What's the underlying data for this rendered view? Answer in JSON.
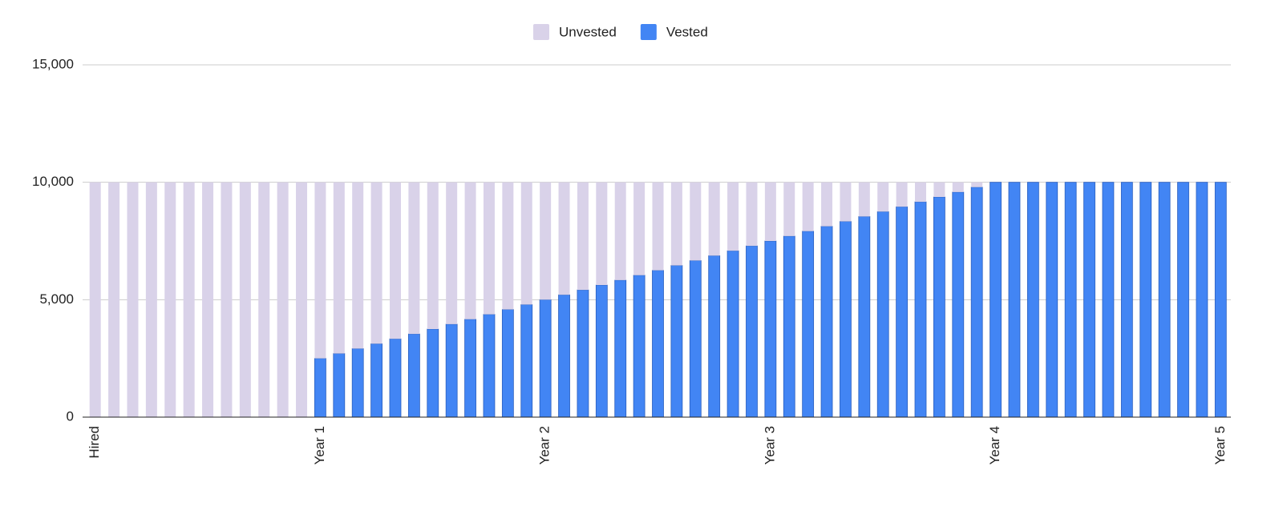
{
  "chart_data": {
    "type": "stacked_bar",
    "categories": [
      "Hired",
      null,
      null,
      null,
      null,
      null,
      null,
      null,
      null,
      null,
      null,
      null,
      "Year 1",
      null,
      null,
      null,
      null,
      null,
      null,
      null,
      null,
      null,
      null,
      null,
      "Year 2",
      null,
      null,
      null,
      null,
      null,
      null,
      null,
      null,
      null,
      null,
      null,
      "Year 3",
      null,
      null,
      null,
      null,
      null,
      null,
      null,
      null,
      null,
      null,
      null,
      "Year 4",
      null,
      null,
      null,
      null,
      null,
      null,
      null,
      null,
      null,
      null,
      null,
      "Year 5"
    ],
    "series": [
      {
        "name": "Unvested",
        "color": "#d9d2e9",
        "values": [
          10000,
          10000,
          10000,
          10000,
          10000,
          10000,
          10000,
          10000,
          10000,
          10000,
          10000,
          10000,
          7500,
          7292,
          7083,
          6875,
          6667,
          6458,
          6250,
          6042,
          5833,
          5625,
          5417,
          5208,
          5000,
          4792,
          4583,
          4375,
          4167,
          3958,
          3750,
          3542,
          3333,
          3125,
          2917,
          2708,
          2500,
          2292,
          2083,
          1875,
          1667,
          1458,
          1250,
          1042,
          833,
          625,
          417,
          208,
          0,
          0,
          0,
          0,
          0,
          0,
          0,
          0,
          0,
          0,
          0,
          0,
          0
        ]
      },
      {
        "name": "Vested",
        "color": "#4285f4",
        "values": [
          0,
          0,
          0,
          0,
          0,
          0,
          0,
          0,
          0,
          0,
          0,
          0,
          2500,
          2708,
          2917,
          3125,
          3333,
          3542,
          3750,
          3958,
          4167,
          4375,
          4583,
          4792,
          5000,
          5208,
          5417,
          5625,
          5833,
          6042,
          6250,
          6458,
          6667,
          6875,
          7083,
          7292,
          7500,
          7708,
          7917,
          8125,
          8333,
          8542,
          8750,
          8958,
          9167,
          9375,
          9583,
          9792,
          10000,
          10000,
          10000,
          10000,
          10000,
          10000,
          10000,
          10000,
          10000,
          10000,
          10000,
          10000,
          10000
        ]
      }
    ],
    "ylim": [
      0,
      15000
    ],
    "yticks": [
      {
        "value": 0,
        "label": "0"
      },
      {
        "value": 5000,
        "label": "5,000"
      },
      {
        "value": 10000,
        "label": "10,000"
      },
      {
        "value": 15000,
        "label": "15,000"
      }
    ],
    "grid": true,
    "legend": "top"
  }
}
